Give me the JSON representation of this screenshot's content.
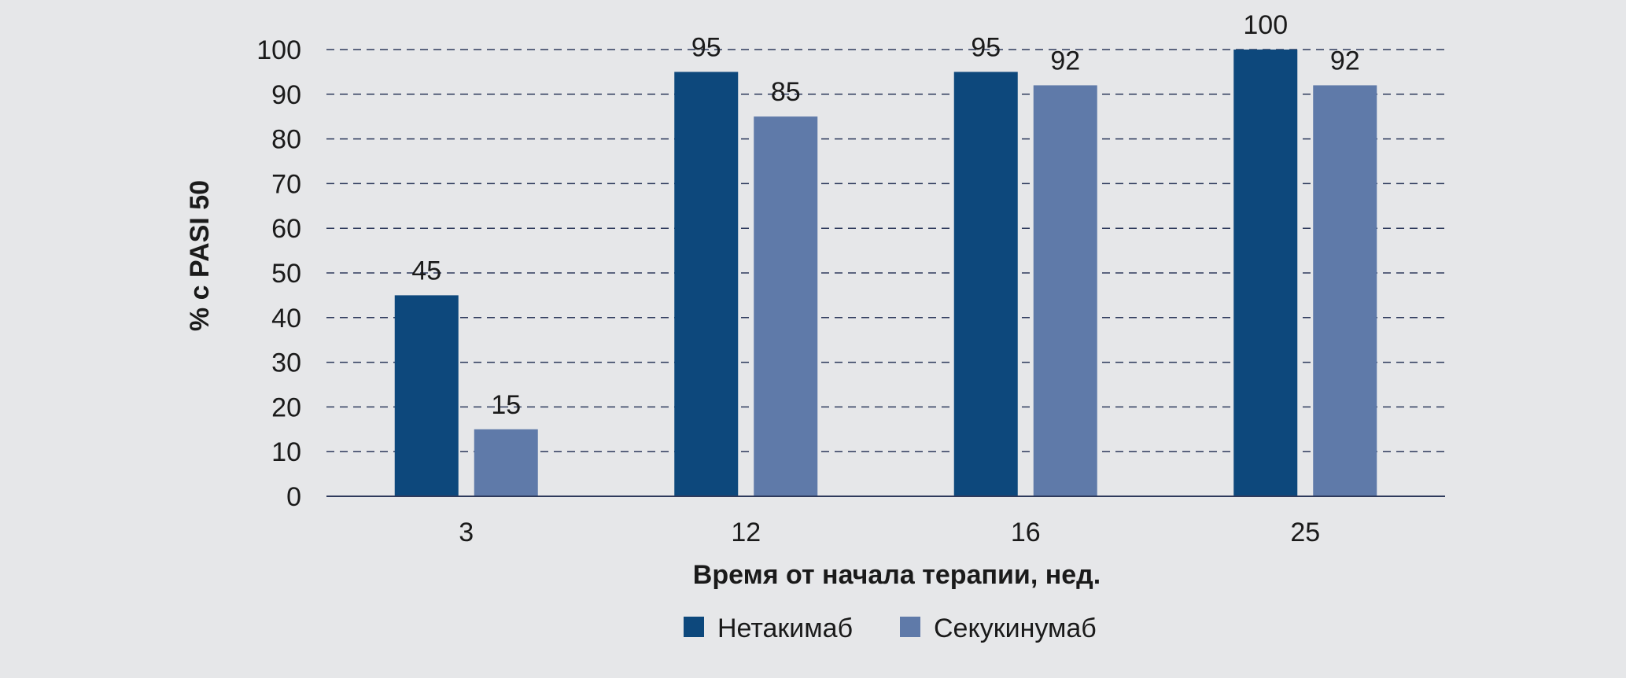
{
  "chart_data": {
    "type": "bar",
    "categories": [
      "3",
      "12",
      "16",
      "25"
    ],
    "series": [
      {
        "name": "Нетакимаб",
        "values": [
          45,
          95,
          95,
          100
        ]
      },
      {
        "name": "Секукинумаб",
        "values": [
          15,
          85,
          92,
          92
        ]
      }
    ],
    "xlabel": "Время от начала терапии, нед.",
    "ylabel": "% с PASI 50",
    "ylim": [
      0,
      100
    ],
    "yticks": [
      "0",
      "10",
      "20",
      "30",
      "40",
      "50",
      "60",
      "70",
      "80",
      "90",
      "100"
    ],
    "grid": true,
    "legend_position": "bottom-center",
    "colors": [
      "#0d487c",
      "#5f7aa9"
    ]
  }
}
